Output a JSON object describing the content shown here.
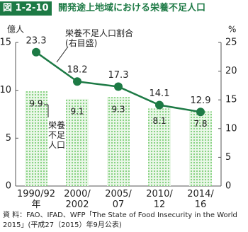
{
  "figure_label": "図 1-2-10",
  "chart_data": {
    "type": "bar-line",
    "title": "開発途上地域における栄養不足人口",
    "y_label": "億人",
    "y2_label": "%",
    "categories": [
      "1990/92年",
      "2000/\n2002",
      "2005/\n07",
      "2010/\n12",
      "2014/\n16"
    ],
    "series": [
      {
        "name": "栄養\n不足\n人口",
        "type": "bar",
        "color": "#7fcf7a",
        "values": [
          9.9,
          9.1,
          9.3,
          8.1,
          7.8
        ]
      },
      {
        "name": "栄養不足人口割合\n(右目盛)",
        "type": "line",
        "axis": "y2",
        "color": "#1d7a45",
        "values": [
          23.3,
          18.2,
          17.3,
          14.1,
          12.9
        ]
      }
    ],
    "ylim": [
      0,
      15
    ],
    "yticks": [
      0,
      5,
      10,
      15
    ],
    "y2lim": [
      0,
      25
    ],
    "y2ticks": [
      0,
      5,
      10,
      15,
      20,
      25
    ]
  },
  "source": "資 料：FAO、IFAD、WFP「The State of Food Insecurity in the World 2015」(平成27（2015）年9月公表)"
}
